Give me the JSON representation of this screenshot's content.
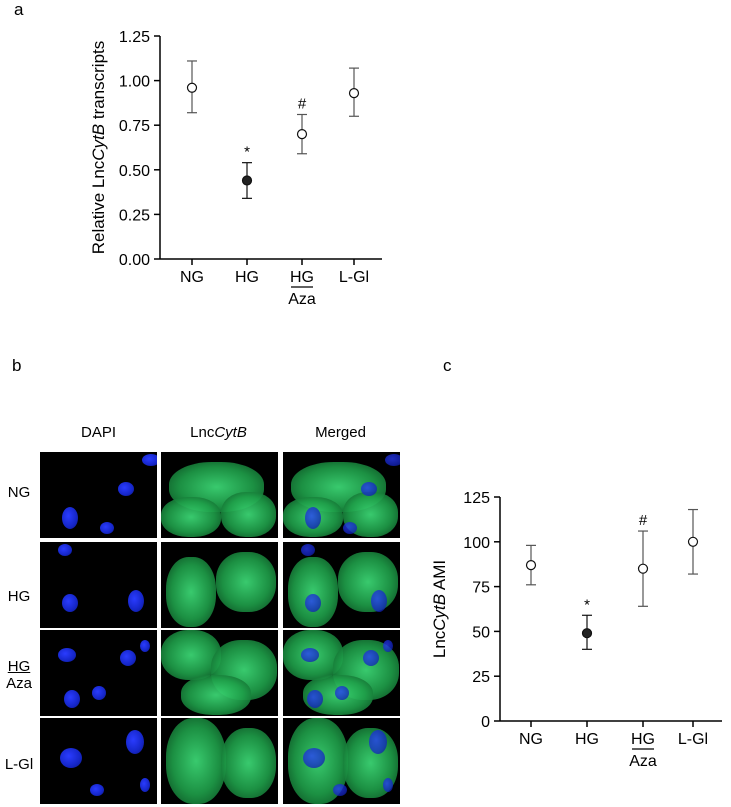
{
  "panels": {
    "a": "a",
    "b": "b",
    "c": "c"
  },
  "colors": {
    "axis": "#000000",
    "error": "#555555",
    "filled_marker": "#222222",
    "open_marker": "#ffffff",
    "dapi": "#1a2cf0",
    "lnc": "#2ccb5e"
  },
  "chart_data": [
    {
      "type": "scatter",
      "panel": "a",
      "categories": [
        "NG",
        "HG",
        "HG_Aza",
        "L-Gl"
      ],
      "category_labels": [
        {
          "top": "NG",
          "bottom": ""
        },
        {
          "top": "HG",
          "bottom": ""
        },
        {
          "top": "HG",
          "bottom": "Aza"
        },
        {
          "top": "L-Gl",
          "bottom": ""
        }
      ],
      "values": [
        0.96,
        0.44,
        0.7,
        0.93
      ],
      "err_low": [
        0.82,
        0.34,
        0.59,
        0.8
      ],
      "err_high": [
        1.11,
        0.54,
        0.81,
        1.07
      ],
      "filled": [
        false,
        true,
        false,
        false
      ],
      "annotations": [
        "",
        "*",
        "#",
        ""
      ],
      "ylabel_prefix": "Relative Lnc",
      "ylabel_italic": "CytB",
      "ylabel_suffix": " transcripts",
      "ylim": [
        0,
        1.25
      ],
      "yticks": [
        "0.00",
        "0.25",
        "0.50",
        "0.75",
        "1.00",
        "1.25"
      ]
    },
    {
      "type": "scatter",
      "panel": "c",
      "categories": [
        "NG",
        "HG",
        "HG_Aza",
        "L-Gl"
      ],
      "category_labels": [
        {
          "top": "NG",
          "bottom": ""
        },
        {
          "top": "HG",
          "bottom": ""
        },
        {
          "top": "HG",
          "bottom": "Aza"
        },
        {
          "top": "L-Gl",
          "bottom": ""
        }
      ],
      "values": [
        87,
        49,
        85,
        100
      ],
      "err_low": [
        76,
        40,
        64,
        82
      ],
      "err_high": [
        98,
        59,
        106,
        118
      ],
      "filled": [
        false,
        true,
        false,
        false
      ],
      "annotations": [
        "",
        "*",
        "#",
        ""
      ],
      "ylabel_prefix": "Lnc",
      "ylabel_italic": "CytB",
      "ylabel_suffix": " AMI",
      "ylim": [
        0,
        125
      ],
      "yticks": [
        "0",
        "25",
        "50",
        "75",
        "100",
        "125"
      ]
    }
  ],
  "micrograph": {
    "columns": [
      {
        "prefix": "DAPI",
        "italic": ""
      },
      {
        "prefix": "Lnc",
        "italic": "CytB"
      },
      {
        "prefix": "Merged",
        "italic": ""
      }
    ],
    "rows": [
      {
        "top": "NG",
        "bottom": ""
      },
      {
        "top": "HG",
        "bottom": ""
      },
      {
        "top": "HG",
        "bottom": "Aza"
      },
      {
        "top": "L-Gl",
        "bottom": ""
      }
    ]
  }
}
